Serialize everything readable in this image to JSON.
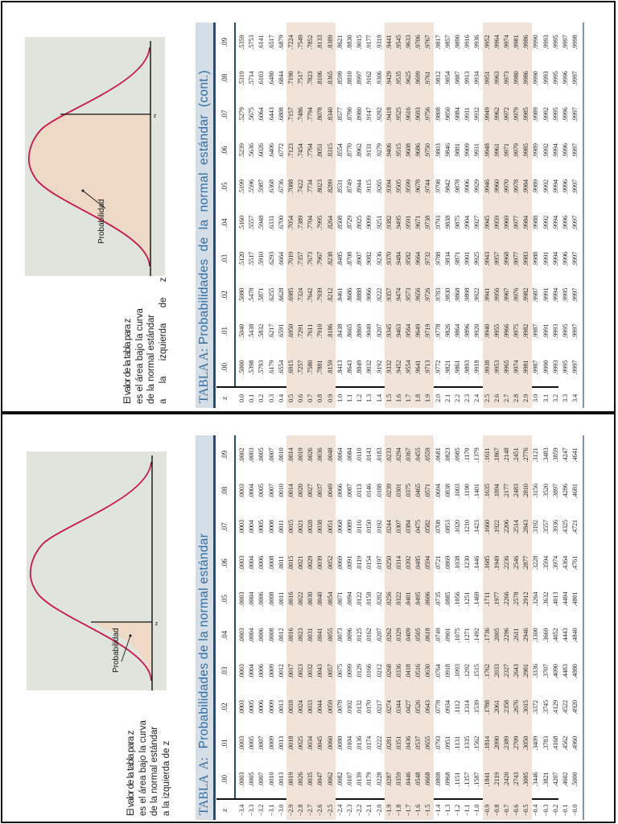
{
  "diagram": {
    "annotation_label": "Probabilidad",
    "axis_marker": "z",
    "caption_lines": [
      "El valor de la tabla para z",
      "es el área bajo la curva",
      "de la normal estándar",
      "a la izquierda de z"
    ],
    "colors": {
      "curve": "#c8184a",
      "fill": "#edd9c6",
      "background": "#dfe4dd",
      "title_text": "#2f6ea5",
      "title_band": "#d5dde7",
      "row_shade": "#f0e4da"
    }
  },
  "tables": {
    "negative": {
      "title_prefix": "TABLA  A:",
      "title_text": "Probabilidades de la normal estándar",
      "headers": [
        "z",
        ".00",
        ".01",
        ".02",
        ".03",
        ".04",
        ".05",
        ".06",
        ".07",
        ".08",
        ".09"
      ],
      "rows": [
        [
          "−3.4",
          ".0003",
          ".0003",
          ".0003",
          ".0003",
          ".0003",
          ".0003",
          ".0003",
          ".0003",
          ".0003",
          ".0002"
        ],
        [
          "−3.3",
          ".0005",
          ".0005",
          ".0005",
          ".0004",
          ".0004",
          ".0004",
          ".0004",
          ".0004",
          ".0004",
          ".0003"
        ],
        [
          "−3.2",
          ".0007",
          ".0007",
          ".0006",
          ".0006",
          ".0006",
          ".0006",
          ".0006",
          ".0005",
          ".0005",
          ".0005"
        ],
        [
          "−3.1",
          ".0010",
          ".0009",
          ".0009",
          ".0009",
          ".0008",
          ".0008",
          ".0008",
          ".0008",
          ".0007",
          ".0007"
        ],
        [
          "−3.0",
          ".0013",
          ".0013",
          ".0013",
          ".0012",
          ".0012",
          ".0011",
          ".0011",
          ".0011",
          ".0010",
          ".0010"
        ],
        [
          "−2.9",
          ".0019",
          ".0018",
          ".0018",
          ".0017",
          ".0016",
          ".0016",
          ".0015",
          ".0015",
          ".0014",
          ".0014"
        ],
        [
          "−2.8",
          ".0026",
          ".0025",
          ".0024",
          ".0023",
          ".0023",
          ".0022",
          ".0021",
          ".0021",
          ".0020",
          ".0019"
        ],
        [
          "−2.7",
          ".0035",
          ".0034",
          ".0033",
          ".0032",
          ".0031",
          ".0030",
          ".0029",
          ".0028",
          ".0027",
          ".0026"
        ],
        [
          "−2.6",
          ".0047",
          ".0045",
          ".0044",
          ".0043",
          ".0041",
          ".0040",
          ".0039",
          ".0038",
          ".0037",
          ".0036"
        ],
        [
          "−2.5",
          ".0062",
          ".0060",
          ".0059",
          ".0057",
          ".0055",
          ".0054",
          ".0052",
          ".0051",
          ".0049",
          ".0048"
        ],
        [
          "−2.4",
          ".0082",
          ".0080",
          ".0078",
          ".0075",
          ".0073",
          ".0071",
          ".0069",
          ".0068",
          ".0066",
          ".0064"
        ],
        [
          "−2.3",
          ".0107",
          ".0104",
          ".0102",
          ".0099",
          ".0096",
          ".0094",
          ".0091",
          ".0089",
          ".0087",
          ".0084"
        ],
        [
          "−2.2",
          ".0139",
          ".0136",
          ".0132",
          ".0129",
          ".0125",
          ".0122",
          ".0119",
          ".0116",
          ".0113",
          ".0110"
        ],
        [
          "−2.1",
          ".0179",
          ".0174",
          ".0170",
          ".0166",
          ".0162",
          ".0158",
          ".0154",
          ".0150",
          ".0146",
          ".0143"
        ],
        [
          "−2.0",
          ".0228",
          ".0222",
          ".0217",
          ".0212",
          ".0207",
          ".0202",
          ".0197",
          ".0192",
          ".0188",
          ".0183"
        ],
        [
          "−1.9",
          ".0287",
          ".0281",
          ".0274",
          ".0268",
          ".0262",
          ".0256",
          ".0250",
          ".0244",
          ".0239",
          ".0233"
        ],
        [
          "−1.8",
          ".0359",
          ".0351",
          ".0344",
          ".0336",
          ".0329",
          ".0322",
          ".0314",
          ".0307",
          ".0301",
          ".0294"
        ],
        [
          "−1.7",
          ".0446",
          ".0436",
          ".0427",
          ".0418",
          ".0409",
          ".0401",
          ".0392",
          ".0384",
          ".0375",
          ".0367"
        ],
        [
          "−1.6",
          ".0548",
          ".0537",
          ".0526",
          ".0516",
          ".0505",
          ".0495",
          ".0485",
          ".0475",
          ".0465",
          ".0455"
        ],
        [
          "−1.5",
          ".0668",
          ".0655",
          ".0643",
          ".0630",
          ".0618",
          ".0606",
          ".0594",
          ".0582",
          ".0571",
          ".0559"
        ],
        [
          "−1.4",
          ".0808",
          ".0793",
          ".0778",
          ".0764",
          ".0749",
          ".0735",
          ".0721",
          ".0708",
          ".0694",
          ".0681"
        ],
        [
          "−1.3",
          ".0968",
          ".0951",
          ".0934",
          ".0918",
          ".0901",
          ".0885",
          ".0869",
          ".0853",
          ".0838",
          ".0823"
        ],
        [
          "−1.2",
          ".1151",
          ".1131",
          ".1112",
          ".1093",
          ".1075",
          ".1056",
          ".1038",
          ".1020",
          ".1003",
          ".0985"
        ],
        [
          "−1.1",
          ".1357",
          ".1335",
          ".1314",
          ".1292",
          ".1271",
          ".1251",
          ".1230",
          ".1210",
          ".1190",
          ".1170"
        ],
        [
          "−1.0",
          ".1587",
          ".1562",
          ".1539",
          ".1515",
          ".1492",
          ".1469",
          ".1446",
          ".1423",
          ".1401",
          ".1379"
        ],
        [
          "−0.9",
          ".1841",
          ".1814",
          ".1788",
          ".1762",
          ".1736",
          ".1711",
          ".1685",
          ".1660",
          ".1635",
          ".1611"
        ],
        [
          "−0.8",
          ".2119",
          ".2090",
          ".2061",
          ".2033",
          ".2005",
          ".1977",
          ".1949",
          ".1922",
          ".1894",
          ".1867"
        ],
        [
          "−0.7",
          ".2420",
          ".2389",
          ".2358",
          ".2327",
          ".2296",
          ".2266",
          ".2236",
          ".2206",
          ".2177",
          ".2148"
        ],
        [
          "−0.6",
          ".2743",
          ".2709",
          ".2676",
          ".2643",
          ".2611",
          ".2578",
          ".2546",
          ".2514",
          ".2483",
          ".2451"
        ],
        [
          "−0.5",
          ".3085",
          ".3050",
          ".3015",
          ".2981",
          ".2946",
          ".2912",
          ".2877",
          ".2843",
          ".2810",
          ".2776"
        ],
        [
          "−0.4",
          ".3446",
          ".3409",
          ".3372",
          ".3336",
          ".3300",
          ".3264",
          ".3228",
          ".3192",
          ".3156",
          ".3121"
        ],
        [
          "−0.3",
          ".3821",
          ".3783",
          ".3745",
          ".3707",
          ".3669",
          ".3632",
          ".3594",
          ".3557",
          ".3520",
          ".3483"
        ],
        [
          "−0.2",
          ".4207",
          ".4168",
          ".4129",
          ".4090",
          ".4052",
          ".4013",
          ".3974",
          ".3936",
          ".3897",
          ".3859"
        ],
        [
          "−0.1",
          ".4602",
          ".4562",
          ".4522",
          ".4483",
          ".4443",
          ".4404",
          ".4364",
          ".4325",
          ".4286",
          ".4247"
        ],
        [
          "−0.0",
          ".5000",
          ".4960",
          ".4920",
          ".4880",
          ".4840",
          ".4801",
          ".4761",
          ".4721",
          ".4681",
          ".4641"
        ]
      ]
    },
    "positive": {
      "title_prefix": "TABLA A:",
      "title_text": "Probabilidades  de  la  normal  estándar  (cont.)",
      "headers": [
        "z",
        ".00",
        ".01",
        ".02",
        ".03",
        ".04",
        ".05",
        ".06",
        ".07",
        ".08",
        ".09"
      ],
      "rows": [
        [
          "0.0",
          ".5000",
          ".5040",
          ".5080",
          ".5120",
          ".5160",
          ".5199",
          ".5239",
          ".5279",
          ".5319",
          ".5359"
        ],
        [
          "0.1",
          ".5398",
          ".5438",
          ".5478",
          ".5517",
          ".5557",
          ".5596",
          ".5636",
          ".5675",
          ".5714",
          ".5753"
        ],
        [
          "0.2",
          ".5793",
          ".5832",
          ".5871",
          ".5910",
          ".5948",
          ".5987",
          ".6026",
          ".6064",
          ".6103",
          ".6141"
        ],
        [
          "0.3",
          ".6179",
          ".6217",
          ".6255",
          ".6293",
          ".6331",
          ".6368",
          ".6406",
          ".6443",
          ".6480",
          ".6517"
        ],
        [
          "0.4",
          ".6554",
          ".6591",
          ".6628",
          ".6664",
          ".6700",
          ".6736",
          ".6772",
          ".6808",
          ".6844",
          ".6879"
        ],
        [
          "0.5",
          ".6915",
          ".6950",
          ".6985",
          ".7019",
          ".7054",
          ".7088",
          ".7123",
          ".7157",
          ".7190",
          ".7224"
        ],
        [
          "0.6",
          ".7257",
          ".7291",
          ".7324",
          ".7357",
          ".7389",
          ".7422",
          ".7454",
          ".7486",
          ".7517",
          ".7549"
        ],
        [
          "0.7",
          ".7580",
          ".7611",
          ".7642",
          ".7673",
          ".7704",
          ".7734",
          ".7764",
          ".7794",
          ".7823",
          ".7852"
        ],
        [
          "0.8",
          ".7881",
          ".7910",
          ".7939",
          ".7967",
          ".7995",
          ".8023",
          ".8051",
          ".8078",
          ".8106",
          ".8133"
        ],
        [
          "0.9",
          ".8159",
          ".8186",
          ".8212",
          ".8238",
          ".8264",
          ".8289",
          ".8315",
          ".8340",
          ".8365",
          ".8389"
        ],
        [
          "1.0",
          ".8413",
          ".8438",
          ".8461",
          ".8485",
          ".8508",
          ".8531",
          ".8554",
          ".8577",
          ".8599",
          ".8621"
        ],
        [
          "1.1",
          ".8643",
          ".8665",
          ".8686",
          ".8708",
          ".8729",
          ".8749",
          ".8770",
          ".8790",
          ".8810",
          ".8830"
        ],
        [
          "1.2",
          ".8849",
          ".8869",
          ".8888",
          ".8907",
          ".8925",
          ".8944",
          ".8962",
          ".8980",
          ".8997",
          ".9015"
        ],
        [
          "1.3",
          ".9032",
          ".9049",
          ".9066",
          ".9082",
          ".9099",
          ".9115",
          ".9131",
          ".9147",
          ".9162",
          ".9177"
        ],
        [
          "1.4",
          ".9192",
          ".9207",
          ".9222",
          ".9236",
          ".9251",
          ".9265",
          ".9279",
          ".9292",
          ".9306",
          ".9319"
        ],
        [
          "1.5",
          ".9332",
          ".9345",
          ".9357",
          ".9370",
          ".9382",
          ".9394",
          ".9406",
          ".9418",
          ".9429",
          ".9441"
        ],
        [
          "1.6",
          ".9452",
          ".9463",
          ".9474",
          ".9484",
          ".9495",
          ".9505",
          ".9515",
          ".9525",
          ".9535",
          ".9545"
        ],
        [
          "1.7",
          ".9554",
          ".9564",
          ".9573",
          ".9582",
          ".9591",
          ".9599",
          ".9608",
          ".9616",
          ".9625",
          ".9633"
        ],
        [
          "1.8",
          ".9641",
          ".9649",
          ".9656",
          ".9664",
          ".9671",
          ".9678",
          ".9686",
          ".9693",
          ".9699",
          ".9706"
        ],
        [
          "1.9",
          ".9713",
          ".9719",
          ".9726",
          ".9732",
          ".9738",
          ".9744",
          ".9750",
          ".9756",
          ".9761",
          ".9767"
        ],
        [
          "2.0",
          ".9772",
          ".9778",
          ".9783",
          ".9788",
          ".9793",
          ".9798",
          ".9803",
          ".9808",
          ".9812",
          ".9817"
        ],
        [
          "2.1",
          ".9821",
          ".9826",
          ".9830",
          ".9834",
          ".9838",
          ".9842",
          ".9846",
          ".9850",
          ".9854",
          ".9857"
        ],
        [
          "2.2",
          ".9861",
          ".9864",
          ".9868",
          ".9871",
          ".9875",
          ".9878",
          ".9881",
          ".9884",
          ".9887",
          ".9890"
        ],
        [
          "2.3",
          ".9893",
          ".9896",
          ".9898",
          ".9901",
          ".9904",
          ".9906",
          ".9909",
          ".9911",
          ".9913",
          ".9916"
        ],
        [
          "2.4",
          ".9918",
          ".9920",
          ".9922",
          ".9925",
          ".9927",
          ".9929",
          ".9931",
          ".9932",
          ".9934",
          ".9936"
        ],
        [
          "2.5",
          ".9938",
          ".9940",
          ".9941",
          ".9943",
          ".9945",
          ".9946",
          ".9948",
          ".9949",
          ".9951",
          ".9952"
        ],
        [
          "2.6",
          ".9953",
          ".9955",
          ".9956",
          ".9957",
          ".9959",
          ".9960",
          ".9961",
          ".9962",
          ".9963",
          ".9964"
        ],
        [
          "2.7",
          ".9965",
          ".9966",
          ".9967",
          ".9968",
          ".9969",
          ".9970",
          ".9971",
          ".9972",
          ".9973",
          ".9974"
        ],
        [
          "2.8",
          ".9974",
          ".9975",
          ".9976",
          ".9977",
          ".9977",
          ".9978",
          ".9979",
          ".9979",
          ".9980",
          ".9981"
        ],
        [
          "2.9",
          ".9981",
          ".9982",
          ".9982",
          ".9983",
          ".9984",
          ".9984",
          ".9985",
          ".9985",
          ".9986",
          ".9986"
        ],
        [
          "3.0",
          ".9987",
          ".9987",
          ".9987",
          ".9988",
          ".9988",
          ".9989",
          ".9989",
          ".9989",
          ".9990",
          ".9990"
        ],
        [
          "3.1",
          ".9990",
          ".9991",
          ".9991",
          ".9991",
          ".9992",
          ".9992",
          ".9992",
          ".9992",
          ".9993",
          ".9993"
        ],
        [
          "3.2",
          ".9993",
          ".9993",
          ".9994",
          ".9994",
          ".9994",
          ".9994",
          ".9994",
          ".9995",
          ".9995",
          ".9995"
        ],
        [
          "3.3",
          ".9995",
          ".9995",
          ".9995",
          ".9996",
          ".9996",
          ".9996",
          ".9996",
          ".9996",
          ".9996",
          ".9997"
        ],
        [
          "3.4",
          ".9997",
          ".9997",
          ".9997",
          ".9997",
          ".9997",
          ".9997",
          ".9997",
          ".9997",
          ".9997",
          ".9998"
        ]
      ]
    }
  }
}
